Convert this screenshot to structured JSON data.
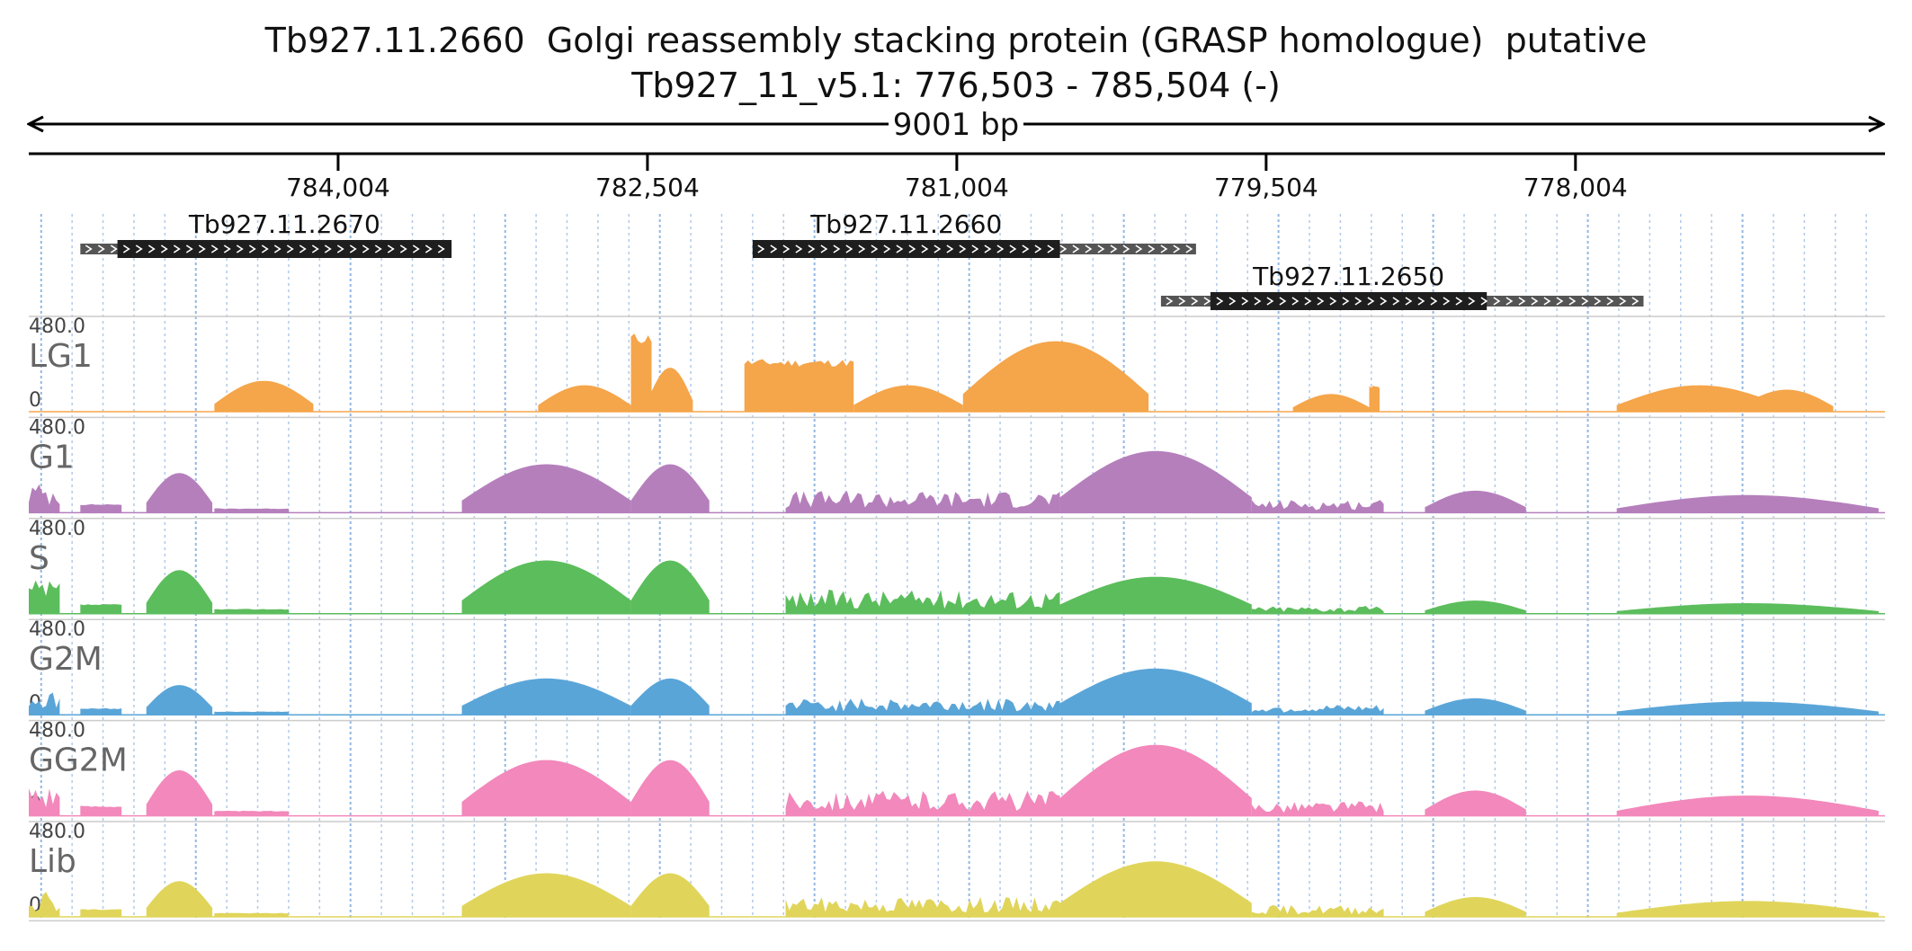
{
  "header": {
    "title": "Tb927.11.2660  Golgi reassembly stacking protein (GRASP homologue)  putative",
    "locus": "Tb927_11_v5.1: 776,503 - 785,504 (-)",
    "span": "9001 bp"
  },
  "axis": {
    "start": 776503,
    "end": 785504,
    "strand": "-",
    "ticks": [
      {
        "pos": 784004,
        "label": "784,004"
      },
      {
        "pos": 782504,
        "label": "782,504"
      },
      {
        "pos": 781004,
        "label": "781,004"
      },
      {
        "pos": 779504,
        "label": "779,504"
      },
      {
        "pos": 778004,
        "label": "778,004"
      }
    ]
  },
  "genes": [
    {
      "name": "Tb927.11.2670",
      "start": 783454,
      "end": 785254,
      "cds_start": 783454,
      "cds_end": 785074,
      "row": 0
    },
    {
      "name": "Tb927.11.2660",
      "start": 779844,
      "end": 781994,
      "cds_start": 780504,
      "cds_end": 781994,
      "row": 0
    },
    {
      "name": "Tb927.11.2650",
      "start": 777674,
      "end": 780014,
      "cds_start": 778434,
      "cds_end": 779774,
      "row": 1
    }
  ],
  "colors": {
    "LG1": "#f5a54a",
    "G1": "#b57fbc",
    "S": "#5cbd5c",
    "G2M": "#5aa5d8",
    "GG2M": "#f288bb",
    "Lib": "#e0d55a",
    "gene_cds": "#1e1e1e",
    "gene_utr": "#555555",
    "grid": "#8fb4e0"
  },
  "tracks": [
    {
      "name": "LG1",
      "max_label": "480.0",
      "min_label": "0"
    },
    {
      "name": "G1",
      "max_label": "480.0",
      "min_label": "0"
    },
    {
      "name": "S",
      "max_label": "480.0",
      "min_label": "0"
    },
    {
      "name": "G2M",
      "max_label": "480.0",
      "min_label": "0"
    },
    {
      "name": "GG2M",
      "max_label": "480.0",
      "min_label": "0"
    },
    {
      "name": "Lib",
      "max_label": "480.0",
      "min_label": "0"
    }
  ]
}
